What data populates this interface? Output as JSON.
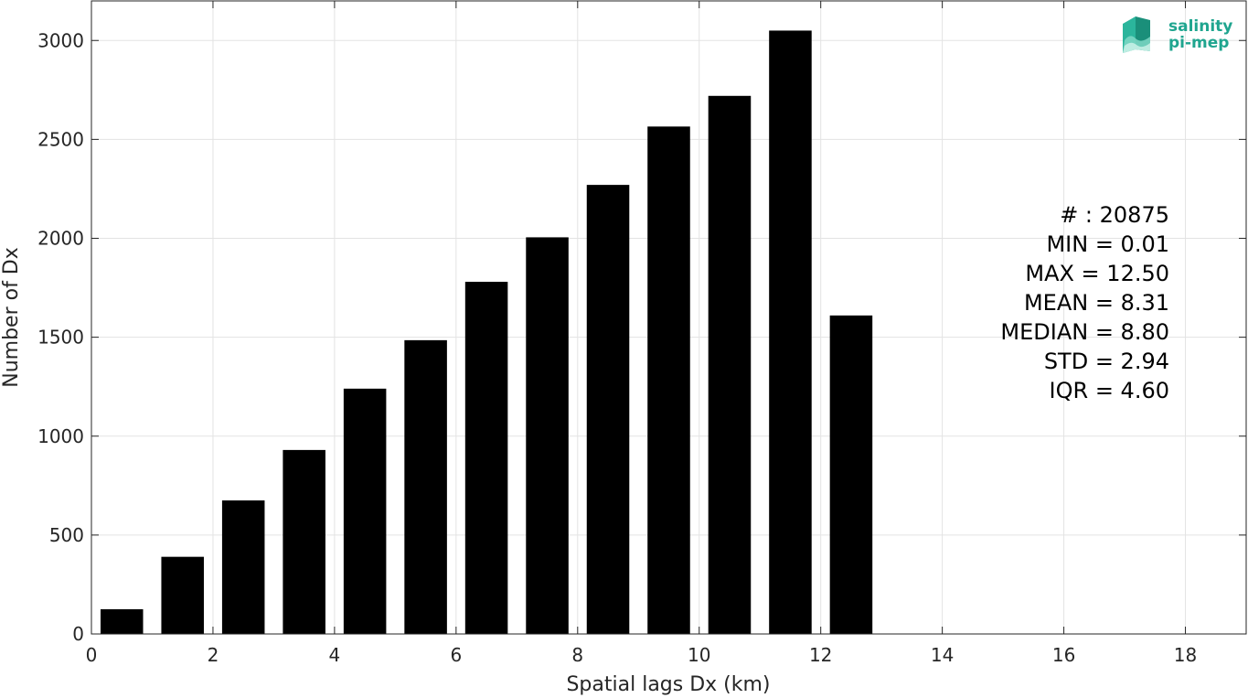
{
  "chart_data": {
    "type": "bar",
    "title": "",
    "xlabel": "Spatial lags Dx (km)",
    "ylabel": "Number of Dx",
    "xlim": [
      0,
      19
    ],
    "ylim": [
      0,
      3200
    ],
    "xticks": [
      0,
      2,
      4,
      6,
      8,
      10,
      12,
      14,
      16,
      18
    ],
    "yticks": [
      0,
      500,
      1000,
      1500,
      2000,
      2500,
      3000
    ],
    "grid": true,
    "bar_color": "#000000",
    "bar_width": 0.7,
    "x": [
      0.5,
      1.5,
      2.5,
      3.5,
      4.5,
      5.5,
      6.5,
      7.5,
      8.5,
      9.5,
      10.5,
      11.5,
      12.5
    ],
    "values": [
      125,
      390,
      675,
      930,
      1240,
      1485,
      1780,
      2005,
      2270,
      2565,
      2720,
      3050,
      1610
    ]
  },
  "stats": [
    "# : 20875",
    "MIN = 0.01",
    "MAX =  12.50",
    "MEAN = 8.31",
    "MEDIAN = 8.80",
    "STD = 2.94",
    "IQR = 4.60"
  ],
  "logo": {
    "line1": "salinity",
    "line2": "pi-mep",
    "color": "#1fa58f"
  }
}
